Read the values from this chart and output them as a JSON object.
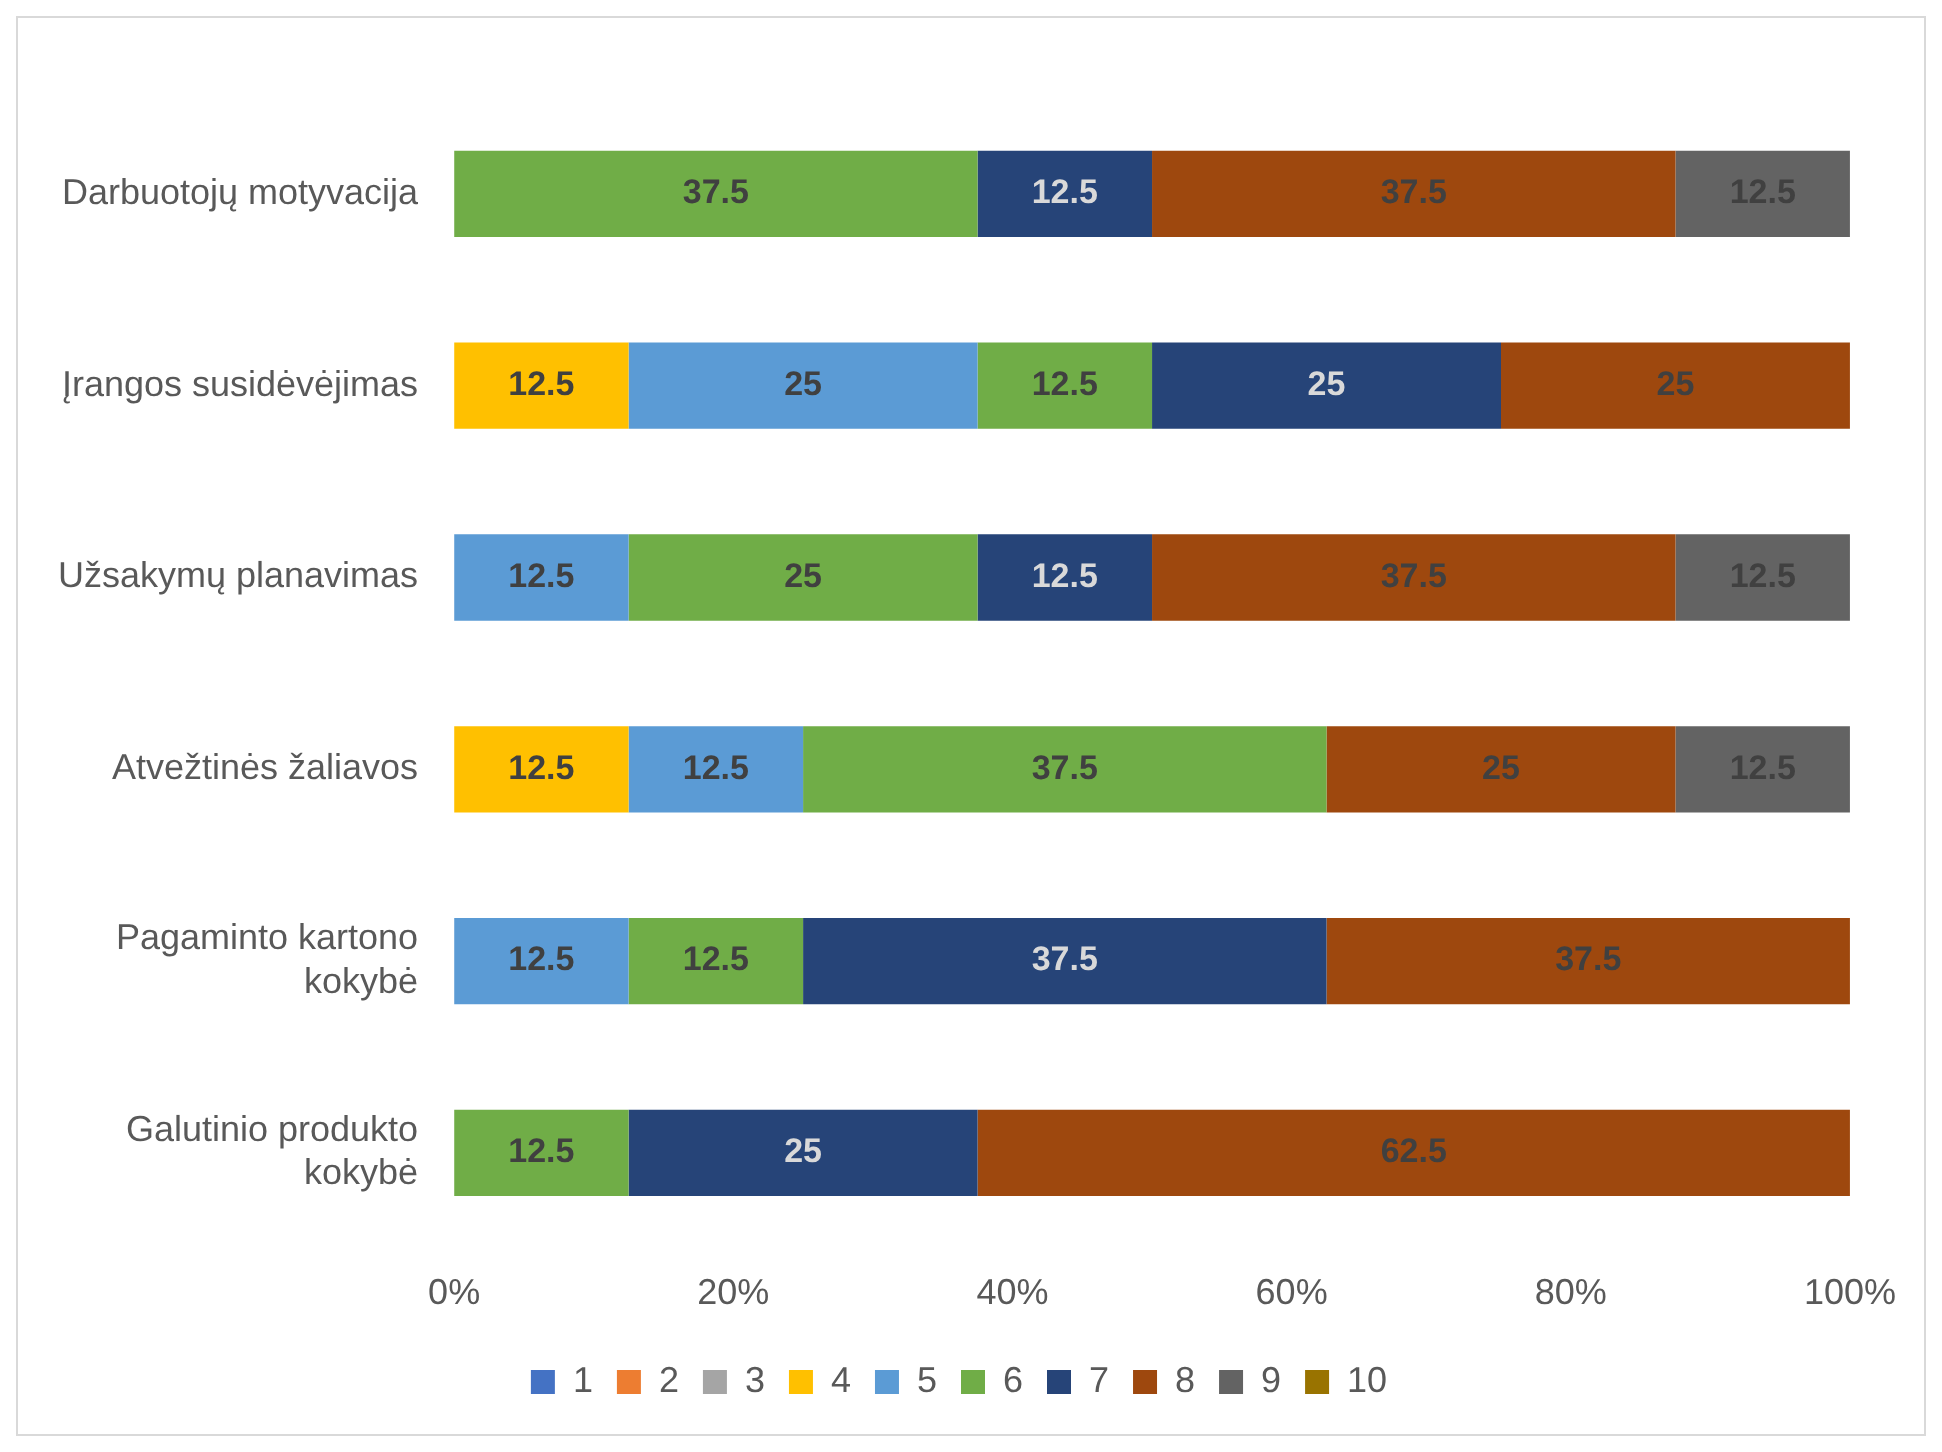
{
  "chart_data": {
    "type": "bar",
    "orientation": "horizontal",
    "stacked": true,
    "data_labels": true,
    "grid": false,
    "legend": "bottom",
    "categories": [
      "Darbuotojų motyvacija",
      "Įrangos susidėvėjimas",
      "Užsakymų planavimas",
      "Atvežtinės žaliavos",
      "Pagaminto kartono kokybė",
      "Galutinio produkto kokybė"
    ],
    "xlim": [
      0,
      100
    ],
    "xticks": [
      {
        "value": 0,
        "label": "0%"
      },
      {
        "value": 20,
        "label": "20%"
      },
      {
        "value": 40,
        "label": "40%"
      },
      {
        "value": 60,
        "label": "60%"
      },
      {
        "value": 80,
        "label": "80%"
      },
      {
        "value": 100,
        "label": "100%"
      }
    ],
    "series": [
      {
        "name": "1",
        "color": "#4472c4",
        "values": [
          null,
          null,
          null,
          null,
          null,
          null
        ]
      },
      {
        "name": "2",
        "color": "#ed7d31",
        "values": [
          null,
          null,
          null,
          null,
          null,
          null
        ]
      },
      {
        "name": "3",
        "color": "#a5a5a5",
        "values": [
          null,
          null,
          null,
          null,
          null,
          null
        ]
      },
      {
        "name": "4",
        "color": "#ffc000",
        "values": [
          null,
          12.5,
          null,
          12.5,
          null,
          null
        ]
      },
      {
        "name": "5",
        "color": "#5b9bd5",
        "values": [
          null,
          25,
          12.5,
          12.5,
          12.5,
          null
        ]
      },
      {
        "name": "6",
        "color": "#70ad47",
        "values": [
          37.5,
          12.5,
          25,
          37.5,
          12.5,
          12.5
        ]
      },
      {
        "name": "7",
        "color": "#264478",
        "values": [
          12.5,
          25,
          12.5,
          null,
          37.5,
          25
        ]
      },
      {
        "name": "8",
        "color": "#9e480e",
        "values": [
          37.5,
          25,
          37.5,
          25,
          37.5,
          62.5
        ]
      },
      {
        "name": "9",
        "color": "#636363",
        "values": [
          12.5,
          null,
          12.5,
          12.5,
          null,
          null
        ]
      },
      {
        "name": "10",
        "color": "#997300",
        "values": [
          null,
          null,
          null,
          null,
          null,
          null
        ]
      }
    ]
  }
}
